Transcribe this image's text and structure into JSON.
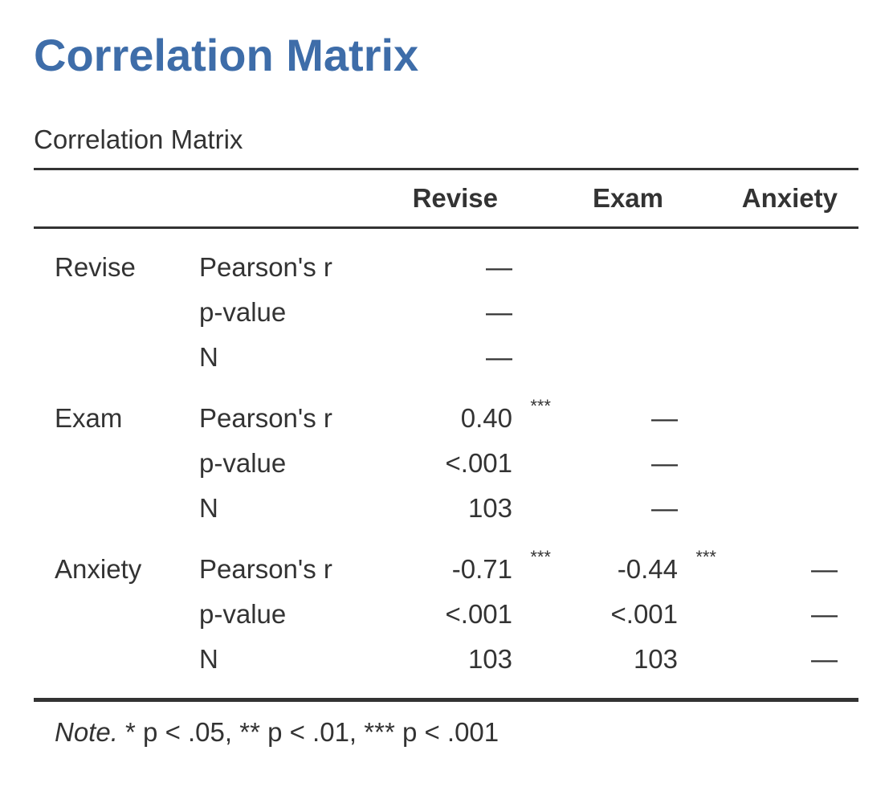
{
  "heading": "Correlation Matrix",
  "caption": "Correlation Matrix",
  "columns": [
    "",
    "",
    "Revise",
    "Exam",
    "Anxiety"
  ],
  "rows": {
    "revise": {
      "label": "Revise",
      "r": {
        "stat": "Pearson's r",
        "revise": "—",
        "exam": "",
        "anx": ""
      },
      "p": {
        "stat": "p-value",
        "revise": "—",
        "exam": "",
        "anx": ""
      },
      "n": {
        "stat": "N",
        "revise": "—",
        "exam": "",
        "anx": ""
      }
    },
    "exam": {
      "label": "Exam",
      "r": {
        "stat": "Pearson's r",
        "revise": "0.40",
        "revise_sig": "***",
        "exam": "—",
        "anx": ""
      },
      "p": {
        "stat": "p-value",
        "revise": "<.001",
        "exam": "—",
        "anx": ""
      },
      "n": {
        "stat": "N",
        "revise": "103",
        "exam": "—",
        "anx": ""
      }
    },
    "anxiety": {
      "label": "Anxiety",
      "r": {
        "stat": "Pearson's r",
        "revise": "-0.71",
        "revise_sig": "***",
        "exam": "-0.44",
        "exam_sig": "***",
        "anx": "—"
      },
      "p": {
        "stat": "p-value",
        "revise": "<.001",
        "exam": "<.001",
        "anx": "—"
      },
      "n": {
        "stat": "N",
        "revise": "103",
        "exam": "103",
        "anx": "—"
      }
    }
  },
  "note": {
    "label": "Note.",
    "text": " * p < .05, ** p < .01, *** p < .001"
  },
  "colors": {
    "heading": "#3e6da9",
    "text": "#333333"
  }
}
